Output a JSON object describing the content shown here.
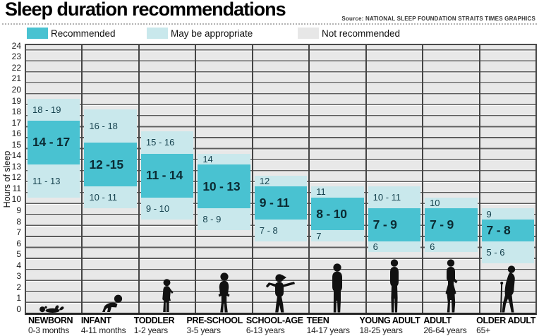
{
  "chart_data": {
    "type": "bar",
    "title": "Sleep duration recommendations",
    "source": "Source: NATIONAL SLEEP FOUNDATION STRAITS TIMES GRAPHICS",
    "ylabel": "Hours of sleep",
    "ylim": [
      0,
      24.5
    ],
    "yticks": [
      0,
      1,
      2,
      3,
      4,
      5,
      6,
      7,
      8,
      9,
      10,
      11,
      12,
      13,
      14,
      15,
      16,
      17,
      18,
      19,
      20,
      21,
      22,
      23,
      24
    ],
    "grid": true,
    "band_semantics": "each hour range [a,b] is drawn from a-0.5 to b+0.5 on the hours axis",
    "legend": [
      {
        "label": "Recommended",
        "color": "#49c2d1"
      },
      {
        "label": "May be appropriate",
        "color": "#c9e8ec"
      },
      {
        "label": "Not recommended",
        "color": "#e7e7e7"
      }
    ],
    "colors": {
      "recommended": "#49c2d1",
      "may_be_appropriate": "#c9e8ec",
      "not_recommended": "#e7e7e7",
      "gridline": "#5c5c5c",
      "column_separator": "#454545",
      "may_text": "#16424e",
      "recommended_text": "#0b2b33",
      "figure": "#111111"
    },
    "groups": [
      {
        "name": "NEWBORN",
        "age": "0-3 months",
        "figure": "newborn-figure",
        "may_upper": {
          "label": "18 - 19",
          "range": [
            18,
            19
          ]
        },
        "recommended": {
          "label": "14 - 17",
          "range": [
            14,
            17
          ]
        },
        "may_lower": {
          "label": "11 - 13",
          "range": [
            11,
            13
          ]
        }
      },
      {
        "name": "INFANT",
        "age": "4-11 months",
        "figure": "infant-figure",
        "may_upper": {
          "label": "16 - 18",
          "range": [
            16,
            18
          ]
        },
        "recommended": {
          "label": "12 -15",
          "range": [
            12,
            15
          ]
        },
        "may_lower": {
          "label": "10 - 11",
          "range": [
            10,
            11
          ]
        }
      },
      {
        "name": "TODDLER",
        "age": "1-2 years",
        "figure": "toddler-figure",
        "may_upper": {
          "label": "15 - 16",
          "range": [
            15,
            16
          ]
        },
        "recommended": {
          "label": "11 - 14",
          "range": [
            11,
            14
          ]
        },
        "may_lower": {
          "label": "9 - 10",
          "range": [
            9,
            10
          ]
        }
      },
      {
        "name": "PRE-SCHOOL",
        "age": "3-5 years",
        "figure": "preschool-figure",
        "may_upper": {
          "label": "14",
          "range": [
            14,
            14
          ]
        },
        "recommended": {
          "label": "10 - 13",
          "range": [
            10,
            13
          ]
        },
        "may_lower": {
          "label": "8 - 9",
          "range": [
            8,
            9
          ]
        }
      },
      {
        "name": "SCHOOL-AGE",
        "age": "6-13 years",
        "figure": "school-age-figure",
        "may_upper": {
          "label": "12",
          "range": [
            12,
            12
          ]
        },
        "recommended": {
          "label": "9 - 11",
          "range": [
            9,
            11
          ]
        },
        "may_lower": {
          "label": "7 - 8",
          "range": [
            7,
            8
          ]
        }
      },
      {
        "name": "TEEN",
        "age": "14-17 years",
        "figure": "teen-figure",
        "may_upper": {
          "label": "11",
          "range": [
            11,
            11
          ]
        },
        "recommended": {
          "label": "8 - 10",
          "range": [
            8,
            10
          ]
        },
        "may_lower": {
          "label": "7",
          "range": [
            7,
            7
          ]
        }
      },
      {
        "name": "YOUNG ADULT",
        "age": "18-25 years",
        "figure": "young-adult-figure",
        "may_upper": {
          "label": "10 - 11",
          "range": [
            10,
            11
          ]
        },
        "recommended": {
          "label": "7 - 9",
          "range": [
            7,
            9
          ]
        },
        "may_lower": {
          "label": "6",
          "range": [
            6,
            6
          ]
        }
      },
      {
        "name": "ADULT",
        "age": "26-64 years",
        "figure": "adult-figure",
        "may_upper": {
          "label": "10",
          "range": [
            10,
            10
          ]
        },
        "recommended": {
          "label": "7 - 9",
          "range": [
            7,
            9
          ]
        },
        "may_lower": {
          "label": "6",
          "range": [
            6,
            6
          ]
        }
      },
      {
        "name": "OLDER ADULT",
        "age": "65+",
        "figure": "older-adult-figure",
        "may_upper": {
          "label": "9",
          "range": [
            9,
            9
          ]
        },
        "recommended": {
          "label": "7 - 8",
          "range": [
            7,
            8
          ]
        },
        "may_lower": {
          "label": "5 - 6",
          "range": [
            5,
            6
          ]
        }
      }
    ]
  }
}
